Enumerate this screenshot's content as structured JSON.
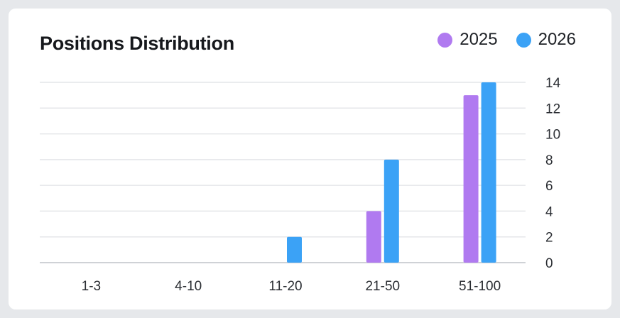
{
  "title": "Positions Distribution",
  "legend": [
    {
      "label": "2025",
      "color": "#b07af0"
    },
    {
      "label": "2026",
      "color": "#3ba2f6"
    }
  ],
  "chart_data": {
    "type": "bar",
    "title": "Positions Distribution",
    "categories": [
      "1-3",
      "4-10",
      "11-20",
      "21-50",
      "51-100"
    ],
    "series": [
      {
        "name": "2025",
        "color": "#b07af0",
        "values": [
          0,
          0,
          0,
          4,
          13
        ]
      },
      {
        "name": "2026",
        "color": "#3ba2f6",
        "values": [
          0,
          0,
          2,
          8,
          14
        ]
      }
    ],
    "ylim": [
      0,
      14
    ],
    "yticks": [
      0,
      2,
      4,
      6,
      8,
      10,
      12,
      14
    ],
    "y_axis_side": "right",
    "grid": true,
    "legend_position": "top-right",
    "xlabel": "",
    "ylabel": ""
  }
}
